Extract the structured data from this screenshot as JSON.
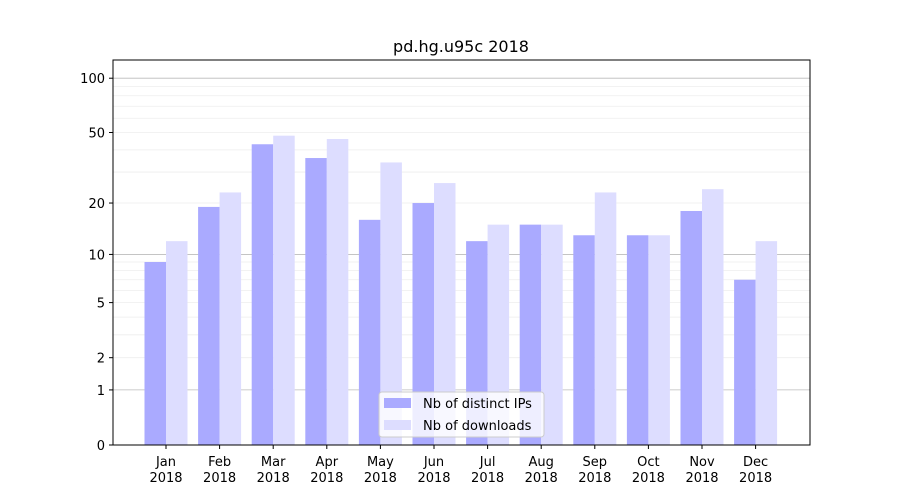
{
  "chart_data": {
    "type": "bar",
    "title": "pd.hg.u95c 2018",
    "xlabel": "",
    "ylabel": "",
    "yscale": "log(1+y)",
    "ylim": [
      0,
      120
    ],
    "yticks": [
      0,
      1,
      2,
      5,
      10,
      20,
      50,
      100
    ],
    "grid": true,
    "legend_position": "bottom-center",
    "categories": [
      "Jan\n2018",
      "Feb\n2018",
      "Mar\n2018",
      "Apr\n2018",
      "May\n2018",
      "Jun\n2018",
      "Jul\n2018",
      "Aug\n2018",
      "Sep\n2018",
      "Oct\n2018",
      "Nov\n2018",
      "Dec\n2018"
    ],
    "series": [
      {
        "name": "Nb of distinct IPs",
        "color": "#aaaaff",
        "values": [
          9,
          19,
          43,
          36,
          16,
          20,
          12,
          15,
          13,
          13,
          18,
          7
        ]
      },
      {
        "name": "Nb of downloads",
        "color": "#ddddff",
        "values": [
          12,
          23,
          48,
          46,
          34,
          26,
          15,
          15,
          23,
          13,
          24,
          12
        ]
      }
    ]
  }
}
